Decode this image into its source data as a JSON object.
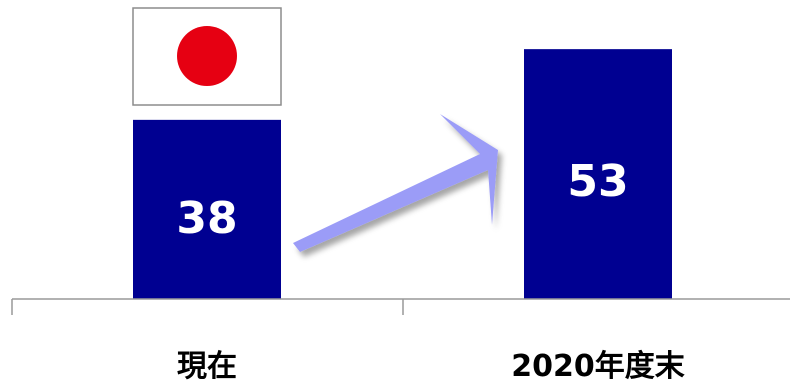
{
  "chart_data": {
    "type": "bar",
    "categories": [
      "現在",
      "2020年度末"
    ],
    "values": [
      38,
      53
    ],
    "data_labels": [
      "38",
      "53"
    ],
    "title": "",
    "xlabel": "",
    "ylabel": "",
    "ylim": [
      0,
      56
    ],
    "grid": false,
    "legend": "none",
    "annotations": [
      "japan-flag-icon",
      "arrow-increase"
    ],
    "colors": {
      "bar": "#000091",
      "data_label": "#ffffff",
      "arrow": "#9b9cf7",
      "flag_disc": "#e60012",
      "axis": "#999999"
    }
  }
}
